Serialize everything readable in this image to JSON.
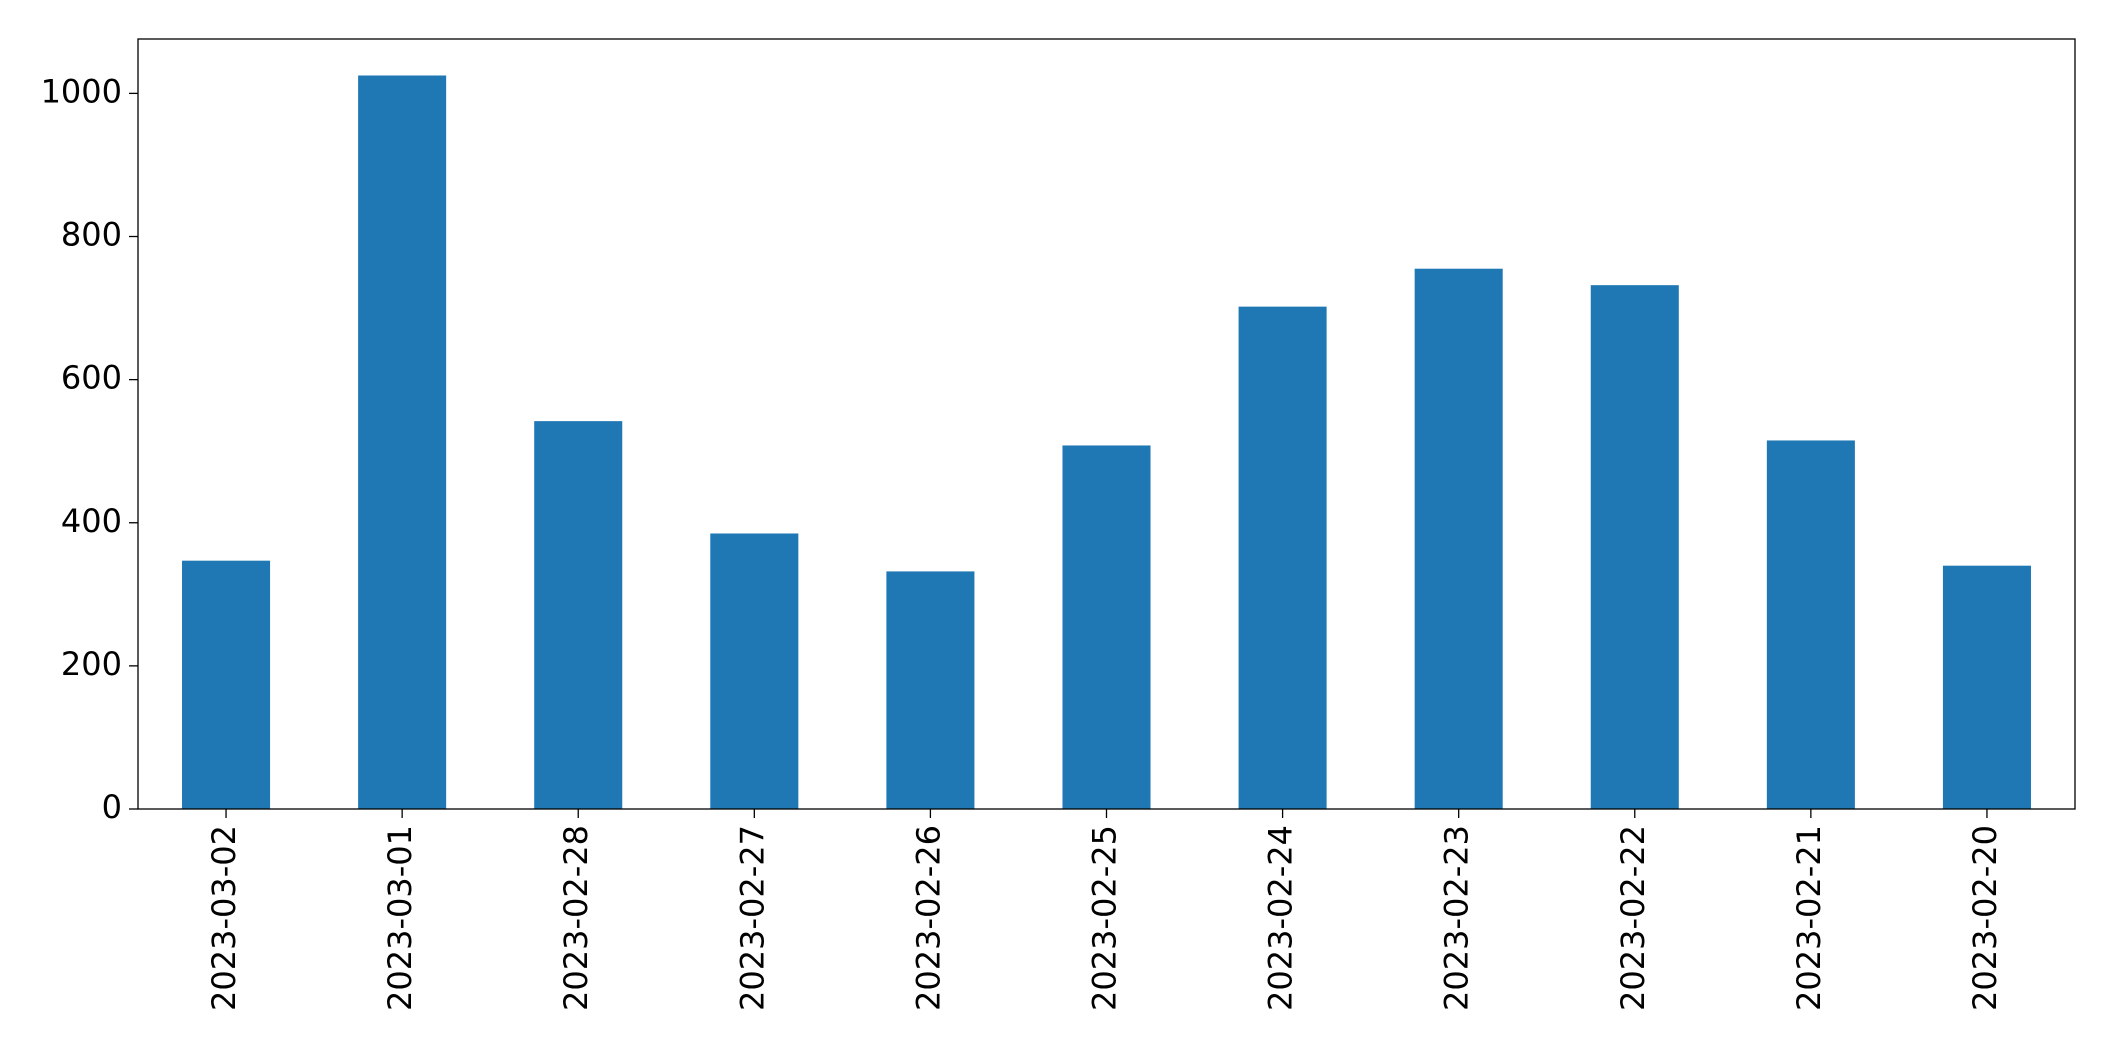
{
  "chart_data": {
    "type": "bar",
    "categories": [
      "2023-03-02",
      "2023-03-01",
      "2023-02-28",
      "2023-02-27",
      "2023-02-26",
      "2023-02-25",
      "2023-02-24",
      "2023-02-23",
      "2023-02-22",
      "2023-02-21",
      "2023-02-20"
    ],
    "values": [
      347,
      1025,
      542,
      385,
      332,
      508,
      702,
      755,
      732,
      515,
      340
    ],
    "color": "#1f77b4",
    "ylim": [
      0,
      1076
    ],
    "yticks": [
      0,
      200,
      400,
      600,
      800,
      1000
    ],
    "grid": false
  }
}
